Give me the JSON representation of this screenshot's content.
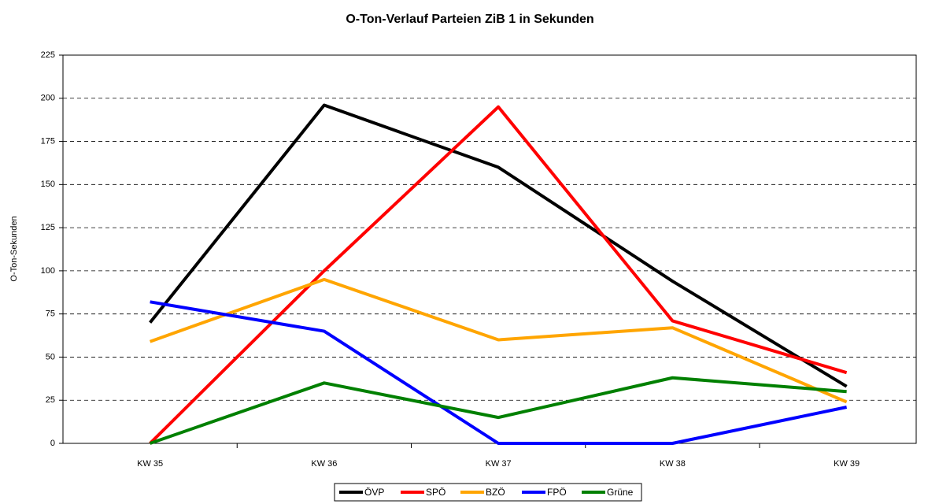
{
  "chart_data": {
    "type": "line",
    "title": "O-Ton-Verlauf Parteien ZiB 1 in Sekunden",
    "y_label": "O-Ton-Sekunden",
    "categories": [
      "KW 35",
      "KW 36",
      "KW 37",
      "KW 38",
      "KW 39"
    ],
    "series": [
      {
        "name": "ÖVP",
        "color": "#000000",
        "values": [
          70,
          196,
          160,
          94,
          33
        ]
      },
      {
        "name": "SPÖ",
        "color": "#ff0000",
        "values": [
          0,
          100,
          195,
          71,
          41
        ]
      },
      {
        "name": "BZÖ",
        "color": "#ffa500",
        "values": [
          59,
          95,
          60,
          67,
          24
        ]
      },
      {
        "name": "FPÖ",
        "color": "#0000ff",
        "values": [
          82,
          65,
          0,
          0,
          21
        ]
      },
      {
        "name": "Grüne",
        "color": "#008000",
        "values": [
          0,
          35,
          15,
          38,
          30
        ]
      }
    ],
    "ylim": [
      0,
      225
    ],
    "yticks": [
      0,
      25,
      50,
      75,
      100,
      125,
      150,
      175,
      200,
      225
    ],
    "grid": true,
    "legend": "bottom"
  }
}
